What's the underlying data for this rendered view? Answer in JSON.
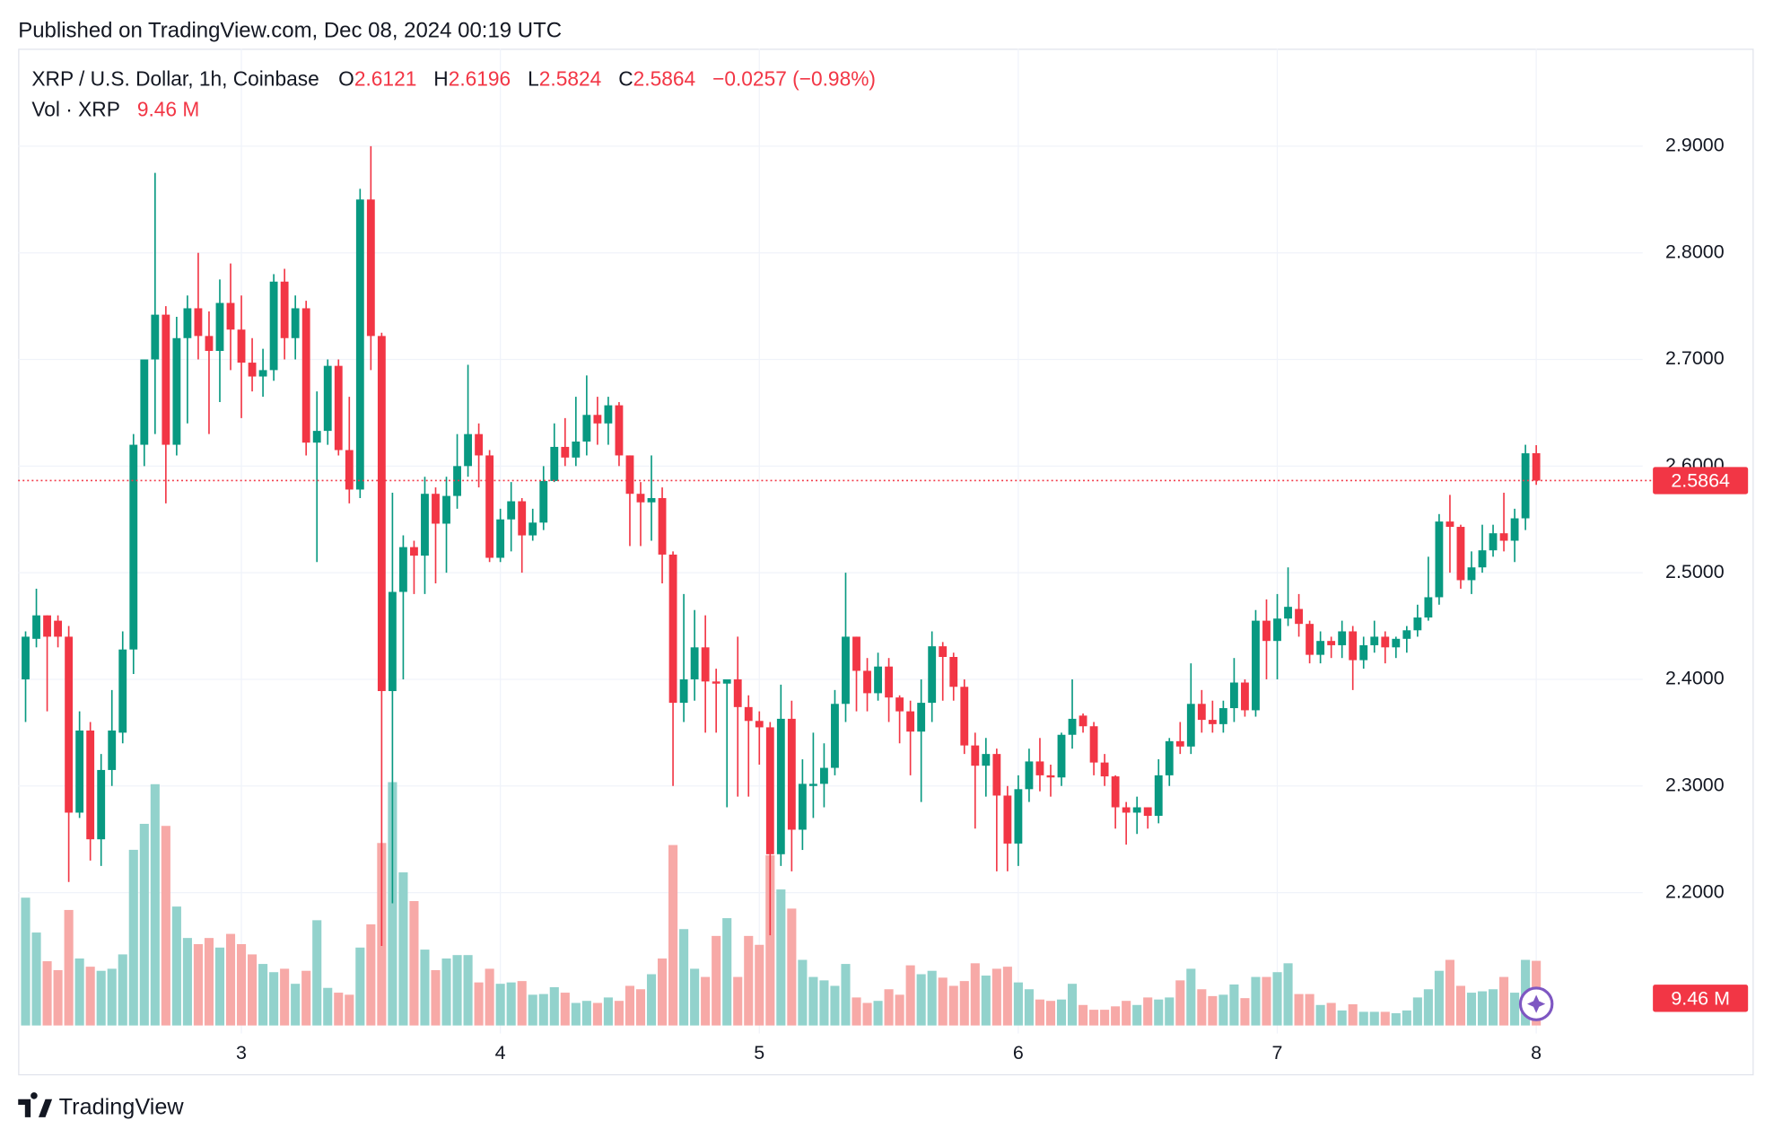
{
  "chart_data": {
    "type": "candlestick",
    "header": "Published on TradingView.com, Dec 08, 2024 00:19 UTC",
    "title": "XRP / U.S. Dollar, 1h, Coinbase",
    "legend": {
      "o_label": "O",
      "open": 2.6121,
      "h_label": "H",
      "high": 2.6196,
      "l_label": "L",
      "low": 2.5824,
      "c_label": "C",
      "close": 2.5864,
      "change_label": "−0.0257 (−0.98%)"
    },
    "volume_title": "Vol · XRP",
    "volume_value_label": "9.46 M",
    "footer": "TradingView",
    "up_color": "#089981",
    "down_color": "#f23645",
    "volume_up_color": "#92d2cc",
    "volume_down_color": "#f7a9a7",
    "grid": true,
    "xlim": [
      2.138,
      8.411
    ],
    "xticks": [
      3,
      4,
      5,
      6,
      7,
      8
    ],
    "ylim": [
      2.0297,
      2.9914
    ],
    "yticks": [
      {
        "value": 2.2,
        "label": "2.2000"
      },
      {
        "value": 2.3,
        "label": "2.3000"
      },
      {
        "value": 2.4,
        "label": "2.4000"
      },
      {
        "value": 2.5,
        "label": "2.5000"
      },
      {
        "value": 2.6,
        "label": "2.6000"
      },
      {
        "value": 2.7,
        "label": "2.7000"
      },
      {
        "value": 2.8,
        "label": "2.8000"
      },
      {
        "value": 2.9,
        "label": "2.9000"
      }
    ],
    "volume_ylim": [
      0,
      37.3
    ],
    "open": [
      2.4,
      2.438,
      2.46,
      2.455,
      2.44,
      2.275,
      2.352,
      2.25,
      2.315,
      2.35,
      2.428,
      2.62,
      2.7,
      2.742,
      2.62,
      2.72,
      2.748,
      2.722,
      2.708,
      2.753,
      2.728,
      2.697,
      2.684,
      2.69,
      2.773,
      2.72,
      2.748,
      2.622,
      2.633,
      2.694,
      2.615,
      2.578,
      2.85,
      2.722,
      2.389,
      2.482,
      2.524,
      2.516,
      2.574,
      2.546,
      2.572,
      2.6,
      2.63,
      2.61,
      2.514,
      2.55,
      2.567,
      2.535,
      2.547,
      2.586,
      2.618,
      2.608,
      2.623,
      2.648,
      2.64,
      2.657,
      2.61,
      2.574,
      2.566,
      2.57,
      2.517,
      2.378,
      2.4,
      2.43,
      2.398,
      2.396,
      2.4,
      2.374,
      2.361,
      2.355,
      2.236,
      2.363,
      2.259,
      2.3,
      2.302,
      2.317,
      2.377,
      2.44,
      2.408,
      2.387,
      2.412,
      2.383,
      2.37,
      2.351,
      2.378,
      2.431,
      2.421,
      2.393,
      2.338,
      2.319,
      2.33,
      2.291,
      2.246,
      2.297,
      2.323,
      2.31,
      2.308,
      2.348,
      2.366,
      2.356,
      2.322,
      2.309,
      2.28,
      2.275,
      2.28,
      2.272,
      2.31,
      2.342,
      2.337,
      2.377,
      2.362,
      2.358,
      2.373,
      2.397,
      2.371,
      2.455,
      2.436,
      2.457,
      2.466,
      2.452,
      2.423,
      2.436,
      2.432,
      2.445,
      2.418,
      2.432,
      2.44,
      2.43,
      2.438,
      2.446,
      2.458,
      2.477,
      2.548,
      2.543,
      2.493,
      2.505,
      2.521,
      2.537,
      2.53,
      2.551,
      2.6121
    ],
    "high": [
      2.445,
      2.485,
      2.46,
      2.46,
      2.45,
      2.37,
      2.36,
      2.33,
      2.39,
      2.445,
      2.63,
      2.7,
      2.875,
      2.75,
      2.74,
      2.76,
      2.8,
      2.745,
      2.775,
      2.79,
      2.76,
      2.72,
      2.71,
      2.78,
      2.785,
      2.76,
      2.755,
      2.67,
      2.7,
      2.7,
      2.665,
      2.86,
      2.9,
      2.725,
      2.575,
      2.535,
      2.53,
      2.59,
      2.58,
      2.59,
      2.63,
      2.695,
      2.64,
      2.615,
      2.56,
      2.585,
      2.57,
      2.56,
      2.6,
      2.64,
      2.645,
      2.665,
      2.685,
      2.665,
      2.665,
      2.66,
      2.61,
      2.585,
      2.61,
      2.58,
      2.52,
      2.48,
      2.465,
      2.46,
      2.41,
      2.4,
      2.44,
      2.385,
      2.37,
      2.36,
      2.395,
      2.38,
      2.325,
      2.35,
      2.34,
      2.39,
      2.5,
      2.44,
      2.42,
      2.425,
      2.42,
      2.385,
      2.38,
      2.4,
      2.445,
      2.435,
      2.425,
      2.4,
      2.35,
      2.345,
      2.335,
      2.3,
      2.31,
      2.335,
      2.345,
      2.32,
      2.35,
      2.4,
      2.368,
      2.36,
      2.33,
      2.31,
      2.285,
      2.29,
      2.28,
      2.325,
      2.345,
      2.36,
      2.415,
      2.39,
      2.38,
      2.38,
      2.42,
      2.4,
      2.465,
      2.475,
      2.48,
      2.505,
      2.48,
      2.455,
      2.445,
      2.44,
      2.455,
      2.45,
      2.44,
      2.455,
      2.445,
      2.44,
      2.45,
      2.47,
      2.515,
      2.555,
      2.573,
      2.545,
      2.52,
      2.545,
      2.545,
      2.575,
      2.56,
      2.62,
      2.6196
    ],
    "low": [
      2.36,
      2.43,
      2.37,
      2.43,
      2.21,
      2.27,
      2.23,
      2.225,
      2.3,
      2.34,
      2.405,
      2.6,
      2.63,
      2.565,
      2.61,
      2.64,
      2.7,
      2.63,
      2.66,
      2.69,
      2.645,
      2.67,
      2.665,
      2.68,
      2.7,
      2.7,
      2.61,
      2.51,
      2.62,
      2.61,
      2.565,
      2.57,
      2.69,
      2.15,
      2.19,
      2.4,
      2.48,
      2.48,
      2.49,
      2.5,
      2.56,
      2.59,
      2.58,
      2.51,
      2.51,
      2.52,
      2.5,
      2.53,
      2.54,
      2.585,
      2.6,
      2.6,
      2.61,
      2.62,
      2.62,
      2.6,
      2.525,
      2.525,
      2.53,
      2.49,
      2.3,
      2.36,
      2.38,
      2.35,
      2.35,
      2.28,
      2.29,
      2.29,
      2.32,
      2.16,
      2.225,
      2.22,
      2.24,
      2.27,
      2.28,
      2.31,
      2.36,
      2.37,
      2.37,
      2.38,
      2.36,
      2.34,
      2.31,
      2.285,
      2.36,
      2.38,
      2.38,
      2.33,
      2.26,
      2.29,
      2.22,
      2.22,
      2.225,
      2.285,
      2.295,
      2.29,
      2.3,
      2.335,
      2.35,
      2.31,
      2.3,
      2.26,
      2.245,
      2.255,
      2.26,
      2.265,
      2.3,
      2.33,
      2.33,
      2.35,
      2.35,
      2.35,
      2.36,
      2.365,
      2.365,
      2.4,
      2.4,
      2.45,
      2.44,
      2.415,
      2.415,
      2.42,
      2.42,
      2.39,
      2.41,
      2.425,
      2.415,
      2.42,
      2.425,
      2.44,
      2.455,
      2.47,
      2.5,
      2.485,
      2.48,
      2.5,
      2.515,
      2.52,
      2.51,
      2.54,
      2.5824
    ],
    "close": [
      2.44,
      2.46,
      2.44,
      2.44,
      2.275,
      2.352,
      2.25,
      2.315,
      2.352,
      2.428,
      2.62,
      2.7,
      2.742,
      2.62,
      2.72,
      2.748,
      2.722,
      2.708,
      2.753,
      2.728,
      2.697,
      2.684,
      2.69,
      2.773,
      2.72,
      2.748,
      2.622,
      2.633,
      2.694,
      2.615,
      2.578,
      2.85,
      2.722,
      2.389,
      2.482,
      2.524,
      2.516,
      2.574,
      2.546,
      2.572,
      2.6,
      2.63,
      2.61,
      2.514,
      2.55,
      2.567,
      2.535,
      2.547,
      2.586,
      2.618,
      2.608,
      2.623,
      2.648,
      2.64,
      2.657,
      2.61,
      2.574,
      2.566,
      2.57,
      2.517,
      2.378,
      2.4,
      2.43,
      2.398,
      2.396,
      2.4,
      2.374,
      2.361,
      2.355,
      2.236,
      2.363,
      2.259,
      2.302,
      2.302,
      2.317,
      2.377,
      2.44,
      2.408,
      2.387,
      2.412,
      2.383,
      2.37,
      2.351,
      2.378,
      2.431,
      2.421,
      2.393,
      2.338,
      2.319,
      2.33,
      2.291,
      2.246,
      2.297,
      2.323,
      2.31,
      2.308,
      2.348,
      2.363,
      2.356,
      2.322,
      2.309,
      2.28,
      2.275,
      2.28,
      2.272,
      2.31,
      2.342,
      2.337,
      2.377,
      2.362,
      2.358,
      2.373,
      2.397,
      2.371,
      2.455,
      2.436,
      2.457,
      2.468,
      2.452,
      2.423,
      2.436,
      2.432,
      2.445,
      2.418,
      2.432,
      2.44,
      2.43,
      2.438,
      2.446,
      2.458,
      2.477,
      2.548,
      2.543,
      2.493,
      2.505,
      2.521,
      2.537,
      2.53,
      2.551,
      2.612,
      2.5864
    ],
    "volume": [
      18.7,
      13.6,
      9.4,
      8.1,
      16.9,
      9.8,
      8.6,
      8.0,
      8.3,
      10.4,
      25.7,
      29.5,
      35.3,
      29.2,
      17.4,
      12.8,
      11.9,
      12.8,
      11.4,
      13.4,
      11.9,
      10.4,
      9.0,
      7.8,
      8.3,
      6.1,
      8.0,
      15.4,
      5.5,
      4.8,
      4.5,
      11.4,
      14.8,
      26.7,
      35.6,
      22.4,
      18.2,
      11.1,
      8.1,
      9.8,
      10.3,
      10.3,
      6.3,
      8.3,
      6.1,
      6.3,
      6.5,
      4.5,
      4.6,
      5.6,
      4.8,
      3.3,
      3.6,
      3.3,
      4.1,
      3.6,
      5.8,
      5.3,
      7.5,
      9.8,
      26.4,
      14.1,
      8.3,
      7.1,
      13.1,
      15.7,
      7.1,
      13.1,
      11.8,
      24.9,
      19.9,
      17.1,
      9.6,
      7.1,
      6.6,
      5.8,
      9.0,
      4.1,
      3.3,
      3.6,
      5.3,
      4.5,
      8.8,
      7.5,
      8.0,
      7.0,
      5.8,
      6.5,
      9.1,
      7.3,
      8.3,
      8.6,
      6.3,
      5.3,
      3.8,
      3.6,
      3.8,
      6.1,
      3.0,
      2.3,
      2.3,
      2.8,
      3.6,
      3.0,
      4.1,
      3.8,
      4.1,
      6.6,
      8.3,
      5.3,
      4.3,
      4.5,
      6.0,
      4.0,
      7.1,
      7.1,
      7.8,
      9.1,
      4.6,
      4.6,
      3.0,
      3.3,
      2.2,
      3.1,
      2.0,
      2.0,
      2.0,
      1.8,
      2.2,
      4.1,
      5.3,
      8.0,
      9.6,
      5.8,
      4.8,
      5.0,
      5.3,
      7.1,
      4.8,
      9.6,
      9.46
    ]
  }
}
